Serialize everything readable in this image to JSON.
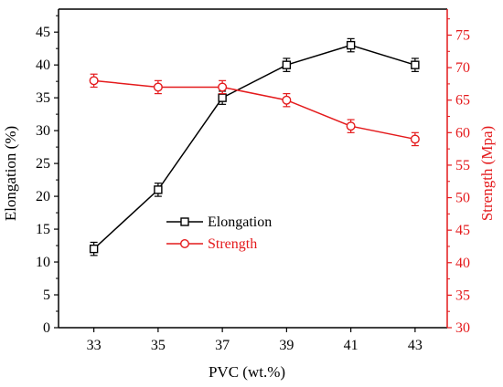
{
  "chart_data": {
    "type": "line",
    "xlabel": "PVC (wt.%)",
    "ylabel_left": "Elongation (%)",
    "ylabel_right": "Strength (Mpa)",
    "x": [
      33,
      35,
      37,
      39,
      41,
      43
    ],
    "x_ticks": [
      "33",
      "35",
      "37",
      "39",
      "41",
      "43"
    ],
    "xlim": [
      31.9,
      44.0
    ],
    "ylim_left": [
      0,
      48.5
    ],
    "ylim_right": [
      30,
      79
    ],
    "y_ticks_left": [
      "0",
      "5",
      "10",
      "15",
      "20",
      "25",
      "30",
      "35",
      "40",
      "45"
    ],
    "y_ticks_right": [
      "30",
      "35",
      "40",
      "45",
      "50",
      "55",
      "60",
      "65",
      "70",
      "75"
    ],
    "legend_position": "center",
    "series": [
      {
        "name": "Elongation",
        "axis": "left",
        "color": "#000000",
        "marker": "square",
        "values": [
          12,
          21,
          35,
          40,
          43,
          40
        ],
        "error": [
          1,
          1,
          1,
          1,
          1,
          1
        ]
      },
      {
        "name": "Strength",
        "axis": "right",
        "color": "#e41a1c",
        "marker": "circle",
        "values": [
          68,
          67,
          67,
          65,
          61,
          59
        ],
        "error": [
          1,
          1,
          1,
          1,
          1,
          1
        ]
      }
    ],
    "colors": {
      "left_axis": "#000000",
      "right_axis": "#e41a1c"
    }
  }
}
